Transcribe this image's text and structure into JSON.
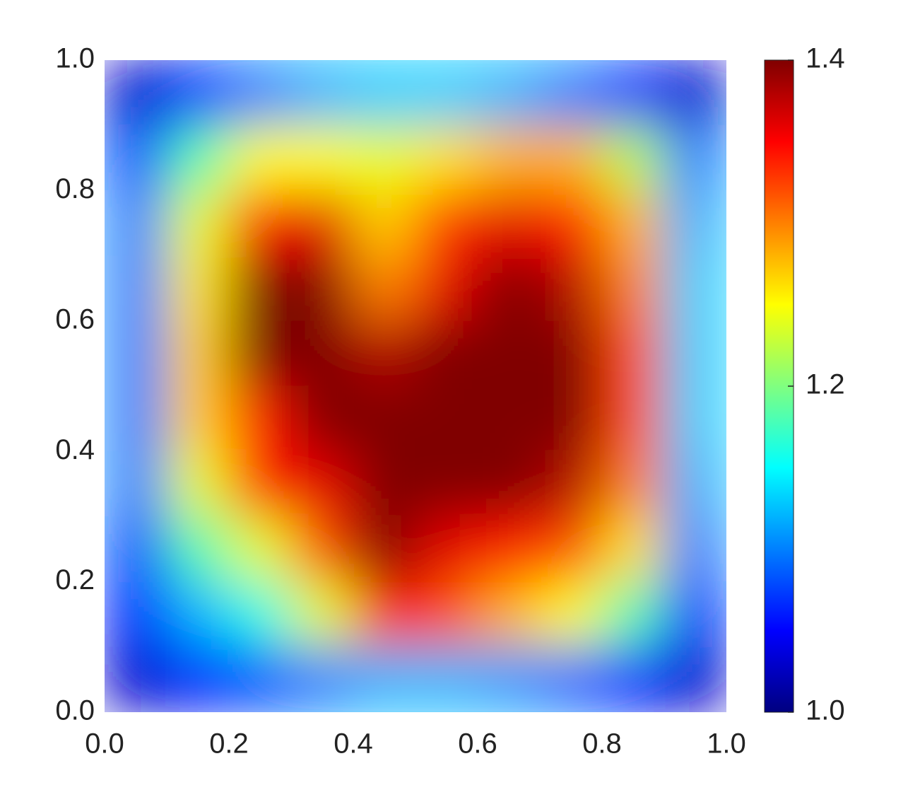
{
  "chart_data": {
    "type": "heatmap",
    "colormap": "jet",
    "x": [
      0.05,
      0.15,
      0.25,
      0.35,
      0.45,
      0.55,
      0.65,
      0.75,
      0.85,
      0.95
    ],
    "y": [
      0.95,
      0.85,
      0.75,
      0.65,
      0.55,
      0.45,
      0.35,
      0.25,
      0.15,
      0.05
    ],
    "z": [
      [
        1.03,
        1.07,
        1.1,
        1.12,
        1.13,
        1.13,
        1.12,
        1.1,
        1.07,
        1.03
      ],
      [
        1.08,
        1.18,
        1.25,
        1.25,
        1.24,
        1.26,
        1.28,
        1.28,
        1.22,
        1.1
      ],
      [
        1.1,
        1.24,
        1.34,
        1.36,
        1.27,
        1.33,
        1.36,
        1.34,
        1.28,
        1.12
      ],
      [
        1.1,
        1.26,
        1.42,
        1.42,
        1.3,
        1.36,
        1.42,
        1.38,
        1.3,
        1.13
      ],
      [
        1.1,
        1.27,
        1.42,
        1.42,
        1.38,
        1.42,
        1.42,
        1.42,
        1.32,
        1.13
      ],
      [
        1.1,
        1.27,
        1.34,
        1.4,
        1.42,
        1.42,
        1.42,
        1.42,
        1.32,
        1.13
      ],
      [
        1.1,
        1.24,
        1.34,
        1.36,
        1.42,
        1.4,
        1.42,
        1.38,
        1.3,
        1.12
      ],
      [
        1.08,
        1.18,
        1.24,
        1.32,
        1.42,
        1.36,
        1.34,
        1.32,
        1.26,
        1.1
      ],
      [
        1.06,
        1.12,
        1.16,
        1.24,
        1.34,
        1.32,
        1.28,
        1.25,
        1.18,
        1.07
      ],
      [
        1.03,
        1.06,
        1.08,
        1.1,
        1.12,
        1.12,
        1.11,
        1.09,
        1.06,
        1.03
      ]
    ],
    "xlim": [
      0,
      1
    ],
    "ylim": [
      0,
      1
    ],
    "xticks": [
      {
        "value": 0,
        "label": "0.0"
      },
      0.2,
      0.4,
      0.6,
      0.8,
      {
        "value": 1,
        "label": "1.0"
      }
    ],
    "yticks": [
      {
        "value": 0,
        "label": "0.0"
      },
      0.2,
      0.4,
      0.6,
      0.8,
      {
        "value": 1,
        "label": "1.0"
      }
    ],
    "colorbar": {
      "lim": [
        1.0,
        1.4
      ],
      "ticks": [
        {
          "value": 1.0,
          "label": "1.0"
        },
        1.2,
        1.4
      ]
    }
  }
}
